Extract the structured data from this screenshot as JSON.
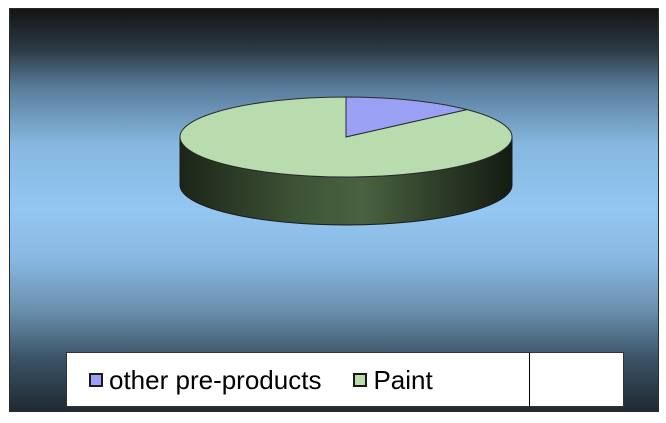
{
  "chart_data": {
    "type": "pie",
    "title": "",
    "slices": [
      {
        "label": "other pre-products",
        "value": 13,
        "color": "#9aa0f4"
      },
      {
        "label": "Paint",
        "value": 87,
        "color": "#b8dcae"
      }
    ],
    "legend_position": "bottom",
    "style": "3d"
  },
  "colors": {
    "other_pre_products": "#9aa0f4",
    "paint": "#b8dcae"
  }
}
